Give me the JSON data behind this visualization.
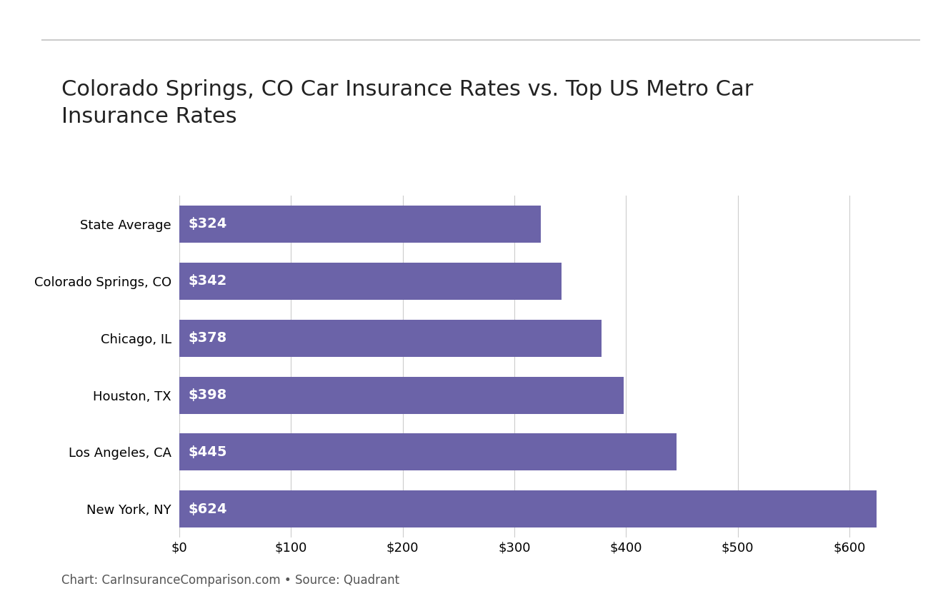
{
  "title": "Colorado Springs, CO Car Insurance Rates vs. Top US Metro Car\nInsurance Rates",
  "categories": [
    "New York, NY",
    "Los Angeles, CA",
    "Houston, TX",
    "Chicago, IL",
    "Colorado Springs, CO",
    "State Average"
  ],
  "values": [
    624,
    445,
    398,
    378,
    342,
    324
  ],
  "bar_color": "#6b63a8",
  "label_color": "#ffffff",
  "xlim": [
    0,
    650
  ],
  "xtick_values": [
    0,
    100,
    200,
    300,
    400,
    500,
    600
  ],
  "xtick_labels": [
    "$0",
    "$100",
    "$200",
    "$300",
    "$400",
    "$500",
    "$600"
  ],
  "background_color": "#ffffff",
  "title_fontsize": 22,
  "bar_label_fontsize": 14,
  "tick_label_fontsize": 13,
  "y_tick_fontsize": 13,
  "caption": "Chart: CarInsuranceComparison.com • Source: Quadrant",
  "caption_fontsize": 12,
  "top_line_color": "#cccccc",
  "grid_color": "#cccccc"
}
